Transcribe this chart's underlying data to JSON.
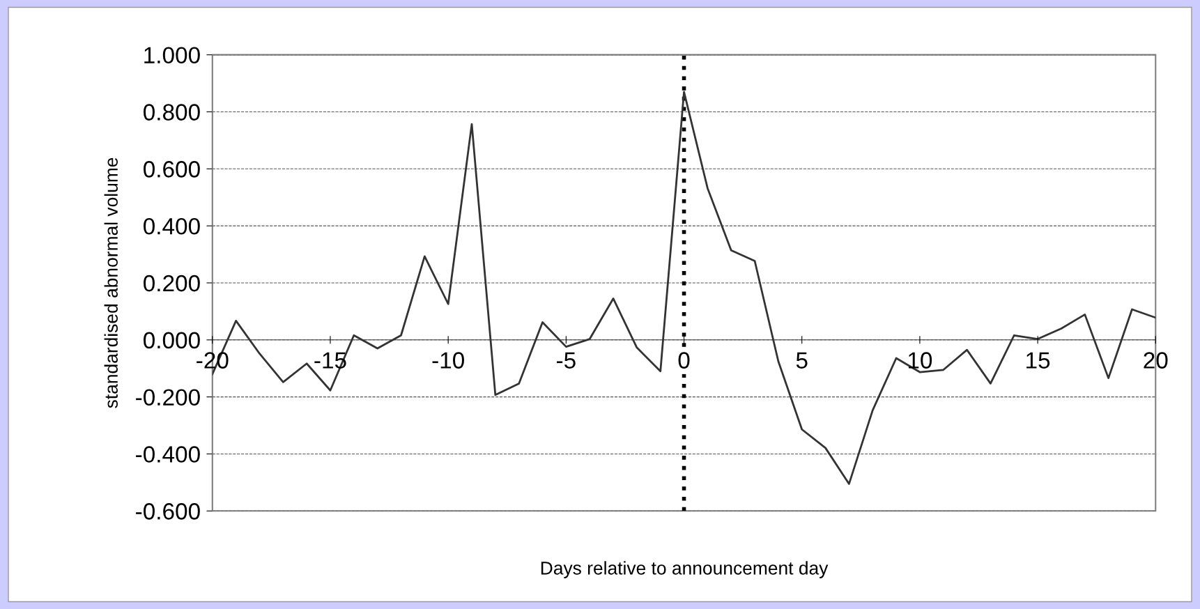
{
  "chart_data": {
    "type": "line",
    "xlabel": "Days relative to announcement day",
    "ylabel": "standardised abnormal volume",
    "x": [
      -20,
      -19,
      -18,
      -17,
      -16,
      -15,
      -14,
      -13,
      -12,
      -11,
      -10,
      -9,
      -8,
      -7,
      -6,
      -5,
      -4,
      -3,
      -2,
      -1,
      0,
      1,
      2,
      3,
      4,
      5,
      6,
      7,
      8,
      9,
      10,
      11,
      12,
      13,
      14,
      15,
      16,
      17,
      18,
      19,
      20
    ],
    "series": [
      {
        "color": "#333333",
        "values": [
          -0.12,
          0.067,
          -0.048,
          -0.148,
          -0.083,
          -0.177,
          0.016,
          -0.03,
          0.016,
          0.293,
          0.126,
          0.757,
          -0.193,
          -0.153,
          0.062,
          -0.024,
          0.003,
          0.145,
          -0.027,
          -0.11,
          0.87,
          0.532,
          0.314,
          0.277,
          -0.075,
          -0.314,
          -0.379,
          -0.505,
          -0.247,
          -0.064,
          -0.113,
          -0.105,
          -0.035,
          -0.153,
          0.016,
          0.003,
          0.04,
          0.089,
          -0.134,
          0.107,
          0.078
        ]
      }
    ],
    "xlim": [
      -20,
      20
    ],
    "xticks": [
      -20,
      -15,
      -10,
      -5,
      0,
      5,
      10,
      15,
      20
    ],
    "ylim": [
      -0.6,
      1.0
    ],
    "yticks": [
      {
        "value": -0.6,
        "label": "-0.600"
      },
      {
        "value": -0.4,
        "label": "-0.400"
      },
      {
        "value": -0.2,
        "label": "-0.200"
      },
      {
        "value": 0,
        "label": "0.000"
      },
      {
        "value": 0.2,
        "label": "0.200"
      },
      {
        "value": 0.4,
        "label": "0.400"
      },
      {
        "value": 0.6,
        "label": "0.600"
      },
      {
        "value": 0.8,
        "label": "0.800"
      },
      {
        "value": 1.0,
        "label": "1.000"
      }
    ],
    "grid": "y",
    "marker": "none",
    "line_style": "solid",
    "legend": false,
    "ref_lines": [
      {
        "axis": "x",
        "value": 0,
        "color": "#000000",
        "line_style": "dotted"
      }
    ]
  }
}
